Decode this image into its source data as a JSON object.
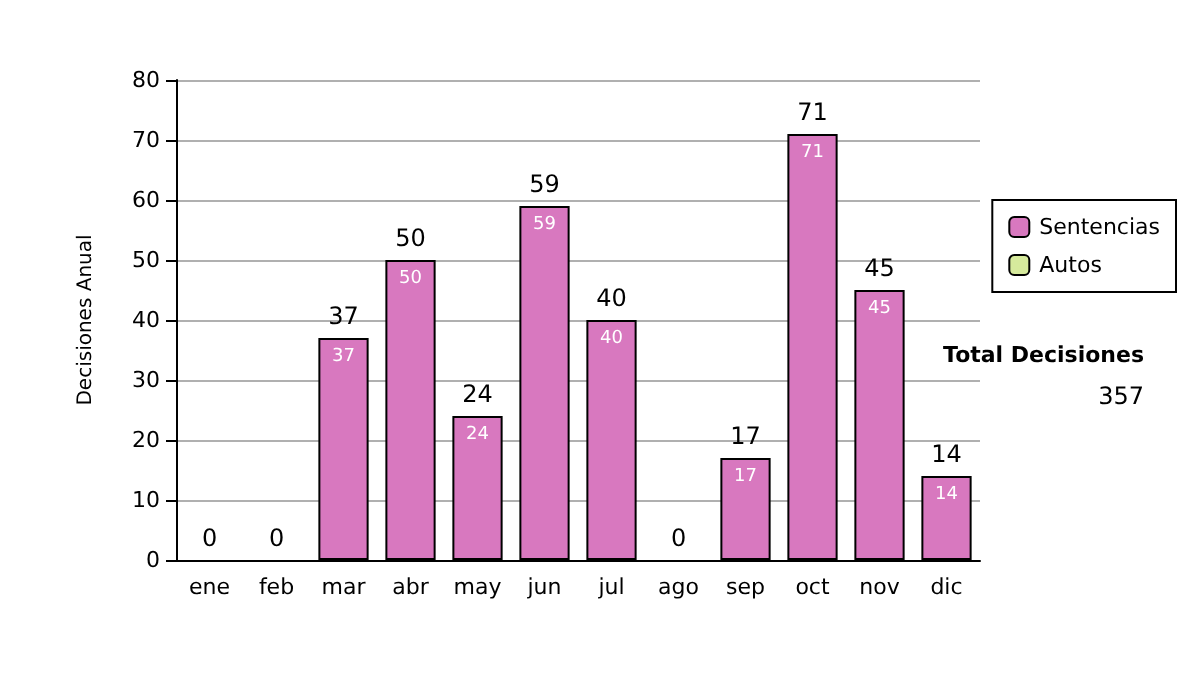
{
  "chart_data": {
    "type": "bar",
    "ylabel": "Decisiones Anual",
    "categories": [
      "ene",
      "feb",
      "mar",
      "abr",
      "may",
      "jun",
      "jul",
      "ago",
      "sep",
      "oct",
      "nov",
      "dic"
    ],
    "series": [
      {
        "name": "Sentencias",
        "color": "#d878bf",
        "values": [
          0,
          0,
          37,
          50,
          24,
          59,
          40,
          0,
          17,
          71,
          45,
          14
        ],
        "value_labels": [
          null,
          null,
          "37",
          "50",
          "24",
          "59",
          "40",
          null,
          "17",
          "71",
          "45",
          "14"
        ]
      },
      {
        "name": "Autos",
        "color": "#d6ea9c",
        "values": [
          0,
          0,
          0,
          0,
          0,
          0,
          0,
          0,
          0,
          0,
          0,
          0
        ]
      }
    ],
    "stacked": true,
    "totals": [
      "0",
      "0",
      "37",
      "50",
      "24",
      "59",
      "40",
      "0",
      "17",
      "71",
      "45",
      "14"
    ],
    "ylim": [
      0,
      80
    ],
    "yticks": [
      0,
      10,
      20,
      30,
      40,
      50,
      60,
      70,
      80
    ],
    "grid": "y",
    "legend": "right",
    "annotations": [
      "Total Decisiones",
      "357"
    ]
  }
}
